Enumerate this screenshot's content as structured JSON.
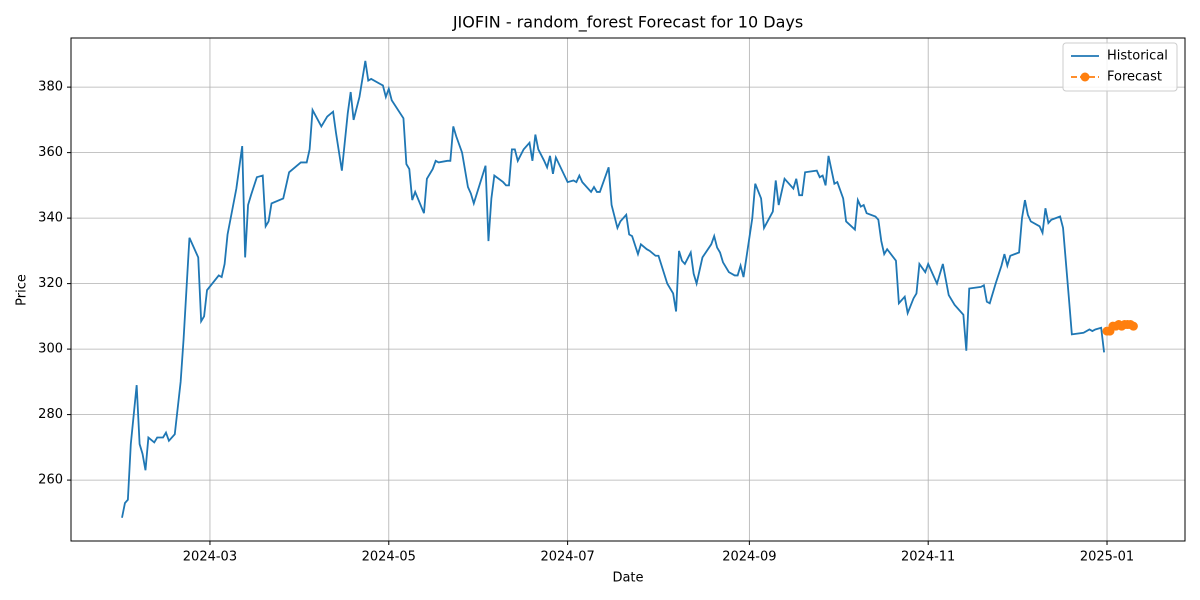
{
  "chart_data": {
    "type": "line",
    "title": "JIOFIN - random_forest Forecast for 10 Days",
    "x_label": "Date",
    "y_label": "Price",
    "xlim": [
      19735.6,
      20115.6
    ],
    "xticks": [
      {
        "value": 19783,
        "label": "2024-03"
      },
      {
        "value": 19844,
        "label": "2024-05"
      },
      {
        "value": 19905,
        "label": "2024-07"
      },
      {
        "value": 19967,
        "label": "2024-09"
      },
      {
        "value": 20028,
        "label": "2024-11"
      },
      {
        "value": 20089,
        "label": "2025-01"
      }
    ],
    "ylim": [
      241.4,
      395.0
    ],
    "yticks": [
      260,
      280,
      300,
      320,
      340,
      360,
      380
    ],
    "grid": true,
    "legend": "upper right",
    "series": [
      {
        "name": "Historical",
        "color": "#1f77b4",
        "style": "solid",
        "x": [
          19753,
          19754,
          19755,
          19756,
          19758,
          19759,
          19760,
          19761,
          19762,
          19764,
          19765,
          19767,
          19768,
          19769,
          19771,
          19773,
          19774,
          19776,
          19779,
          19780,
          19781,
          19782,
          19786,
          19787,
          19788,
          19789,
          19792,
          19794,
          19795,
          19796,
          19797,
          19799,
          19801,
          19802,
          19803,
          19804,
          19808,
          19810,
          19814,
          19816,
          19817,
          19818,
          19821,
          19823,
          19825,
          19826,
          19828,
          19830,
          19831,
          19832,
          19834,
          19836,
          19837,
          19838,
          19842,
          19843,
          19844,
          19845,
          19849,
          19850,
          19851,
          19852,
          19853,
          19856,
          19857,
          19859,
          19860,
          19861,
          19864,
          19865,
          19866,
          19867,
          19869,
          19871,
          19872,
          19873,
          19877,
          19878,
          19879,
          19880,
          19883,
          19884,
          19885,
          19886,
          19887,
          19888,
          19890,
          19892,
          19893,
          19894,
          19895,
          19897,
          19898,
          19899,
          19900,
          19901,
          19905,
          19907,
          19908,
          19909,
          19910,
          19913,
          19914,
          19915,
          19916,
          19919,
          19920,
          19922,
          19923,
          19925,
          19926,
          19927,
          19929,
          19930,
          19932,
          19933,
          19935,
          19936,
          19939,
          19941,
          19942,
          19943,
          19944,
          19945,
          19947,
          19948,
          19949,
          19951,
          19954,
          19955,
          19956,
          19957,
          19958,
          19960,
          19962,
          19963,
          19964,
          19965,
          19968,
          19969,
          19971,
          19972,
          19975,
          19976,
          19977,
          19979,
          19982,
          19983,
          19984,
          19985,
          19986,
          19990,
          19991,
          19992,
          19993,
          19994,
          19996,
          19997,
          19999,
          20000,
          20003,
          20004,
          20005,
          20006,
          20007,
          20010,
          20011,
          20012,
          20013,
          20014,
          20017,
          20018,
          20020,
          20021,
          20023,
          20024,
          20025,
          20027,
          20028,
          20031,
          20033,
          20035,
          20037,
          20040,
          20041,
          20042,
          20046,
          20047,
          20048,
          20049,
          20051,
          20053,
          20054,
          20055,
          20056,
          20059,
          20060,
          20061,
          20062,
          20063,
          20066,
          20067,
          20068,
          20069,
          20070,
          20073,
          20074,
          20076,
          20077,
          20081,
          20083,
          20084,
          20085,
          20087,
          20088
        ],
        "values": [
          248.5,
          253,
          254,
          271,
          289,
          271,
          268,
          263,
          273,
          271.5,
          273,
          273,
          274.5,
          272,
          274,
          290,
          303,
          334,
          328,
          308.5,
          310,
          318,
          322.5,
          322,
          326,
          335,
          349,
          362,
          328,
          344,
          347,
          352.5,
          353,
          337.5,
          339,
          344.5,
          346,
          354,
          357,
          357,
          361,
          373,
          368,
          371,
          372.5,
          366,
          354.5,
          372,
          378.5,
          370,
          377,
          388,
          382,
          382.5,
          380.5,
          377,
          379.5,
          376,
          370.5,
          356.5,
          355,
          345.5,
          348,
          341.5,
          352,
          355,
          357.5,
          357,
          357.5,
          357.5,
          368,
          365,
          360,
          349.5,
          347.5,
          344.5,
          356,
          333,
          346,
          353,
          351,
          350,
          350,
          361,
          361,
          357.5,
          361,
          363,
          357.5,
          365.5,
          361,
          357.5,
          355.5,
          359,
          353.5,
          358.5,
          351,
          351.5,
          351,
          353,
          351,
          348,
          349.5,
          348,
          348,
          355.5,
          344,
          337,
          339,
          341,
          335,
          334.5,
          329,
          332,
          330.5,
          330,
          328.5,
          328.5,
          320,
          317,
          311.5,
          330,
          327,
          326,
          329.5,
          323,
          320,
          328,
          332,
          334.5,
          331,
          329.5,
          326.5,
          323.5,
          322.5,
          322.5,
          325.5,
          322,
          340,
          350.5,
          346,
          337,
          342,
          351.5,
          344,
          352,
          349,
          352,
          347,
          347,
          354,
          354.5,
          352.5,
          353,
          350,
          359,
          350.5,
          351,
          346,
          339,
          336.5,
          345.5,
          343.5,
          344,
          341.5,
          340.5,
          339.5,
          333,
          329,
          330.5,
          327,
          314,
          316,
          311,
          315.5,
          317,
          326,
          323.5,
          326,
          320,
          326,
          316.5,
          313.5,
          310.5,
          299.5,
          318.5,
          319,
          319.5,
          314.5,
          314,
          320,
          325.5,
          329,
          325.5,
          328.5,
          329.5,
          340,
          345.5,
          341,
          339,
          337.5,
          335.5,
          343,
          338.5,
          339.5,
          340.5,
          337,
          315.5,
          304.5,
          305,
          306,
          305.5,
          306,
          306.5,
          299
        ]
      },
      {
        "name": "Forecast",
        "color": "#ff7f0e",
        "style": "dashed",
        "marker": "circle",
        "x": [
          20089,
          20090,
          20091,
          20092,
          20093,
          20094,
          20095,
          20096,
          20097,
          20098
        ],
        "values": [
          305.5,
          305.5,
          307,
          307,
          307.5,
          307,
          307.5,
          307.5,
          307.5,
          307
        ]
      }
    ]
  }
}
